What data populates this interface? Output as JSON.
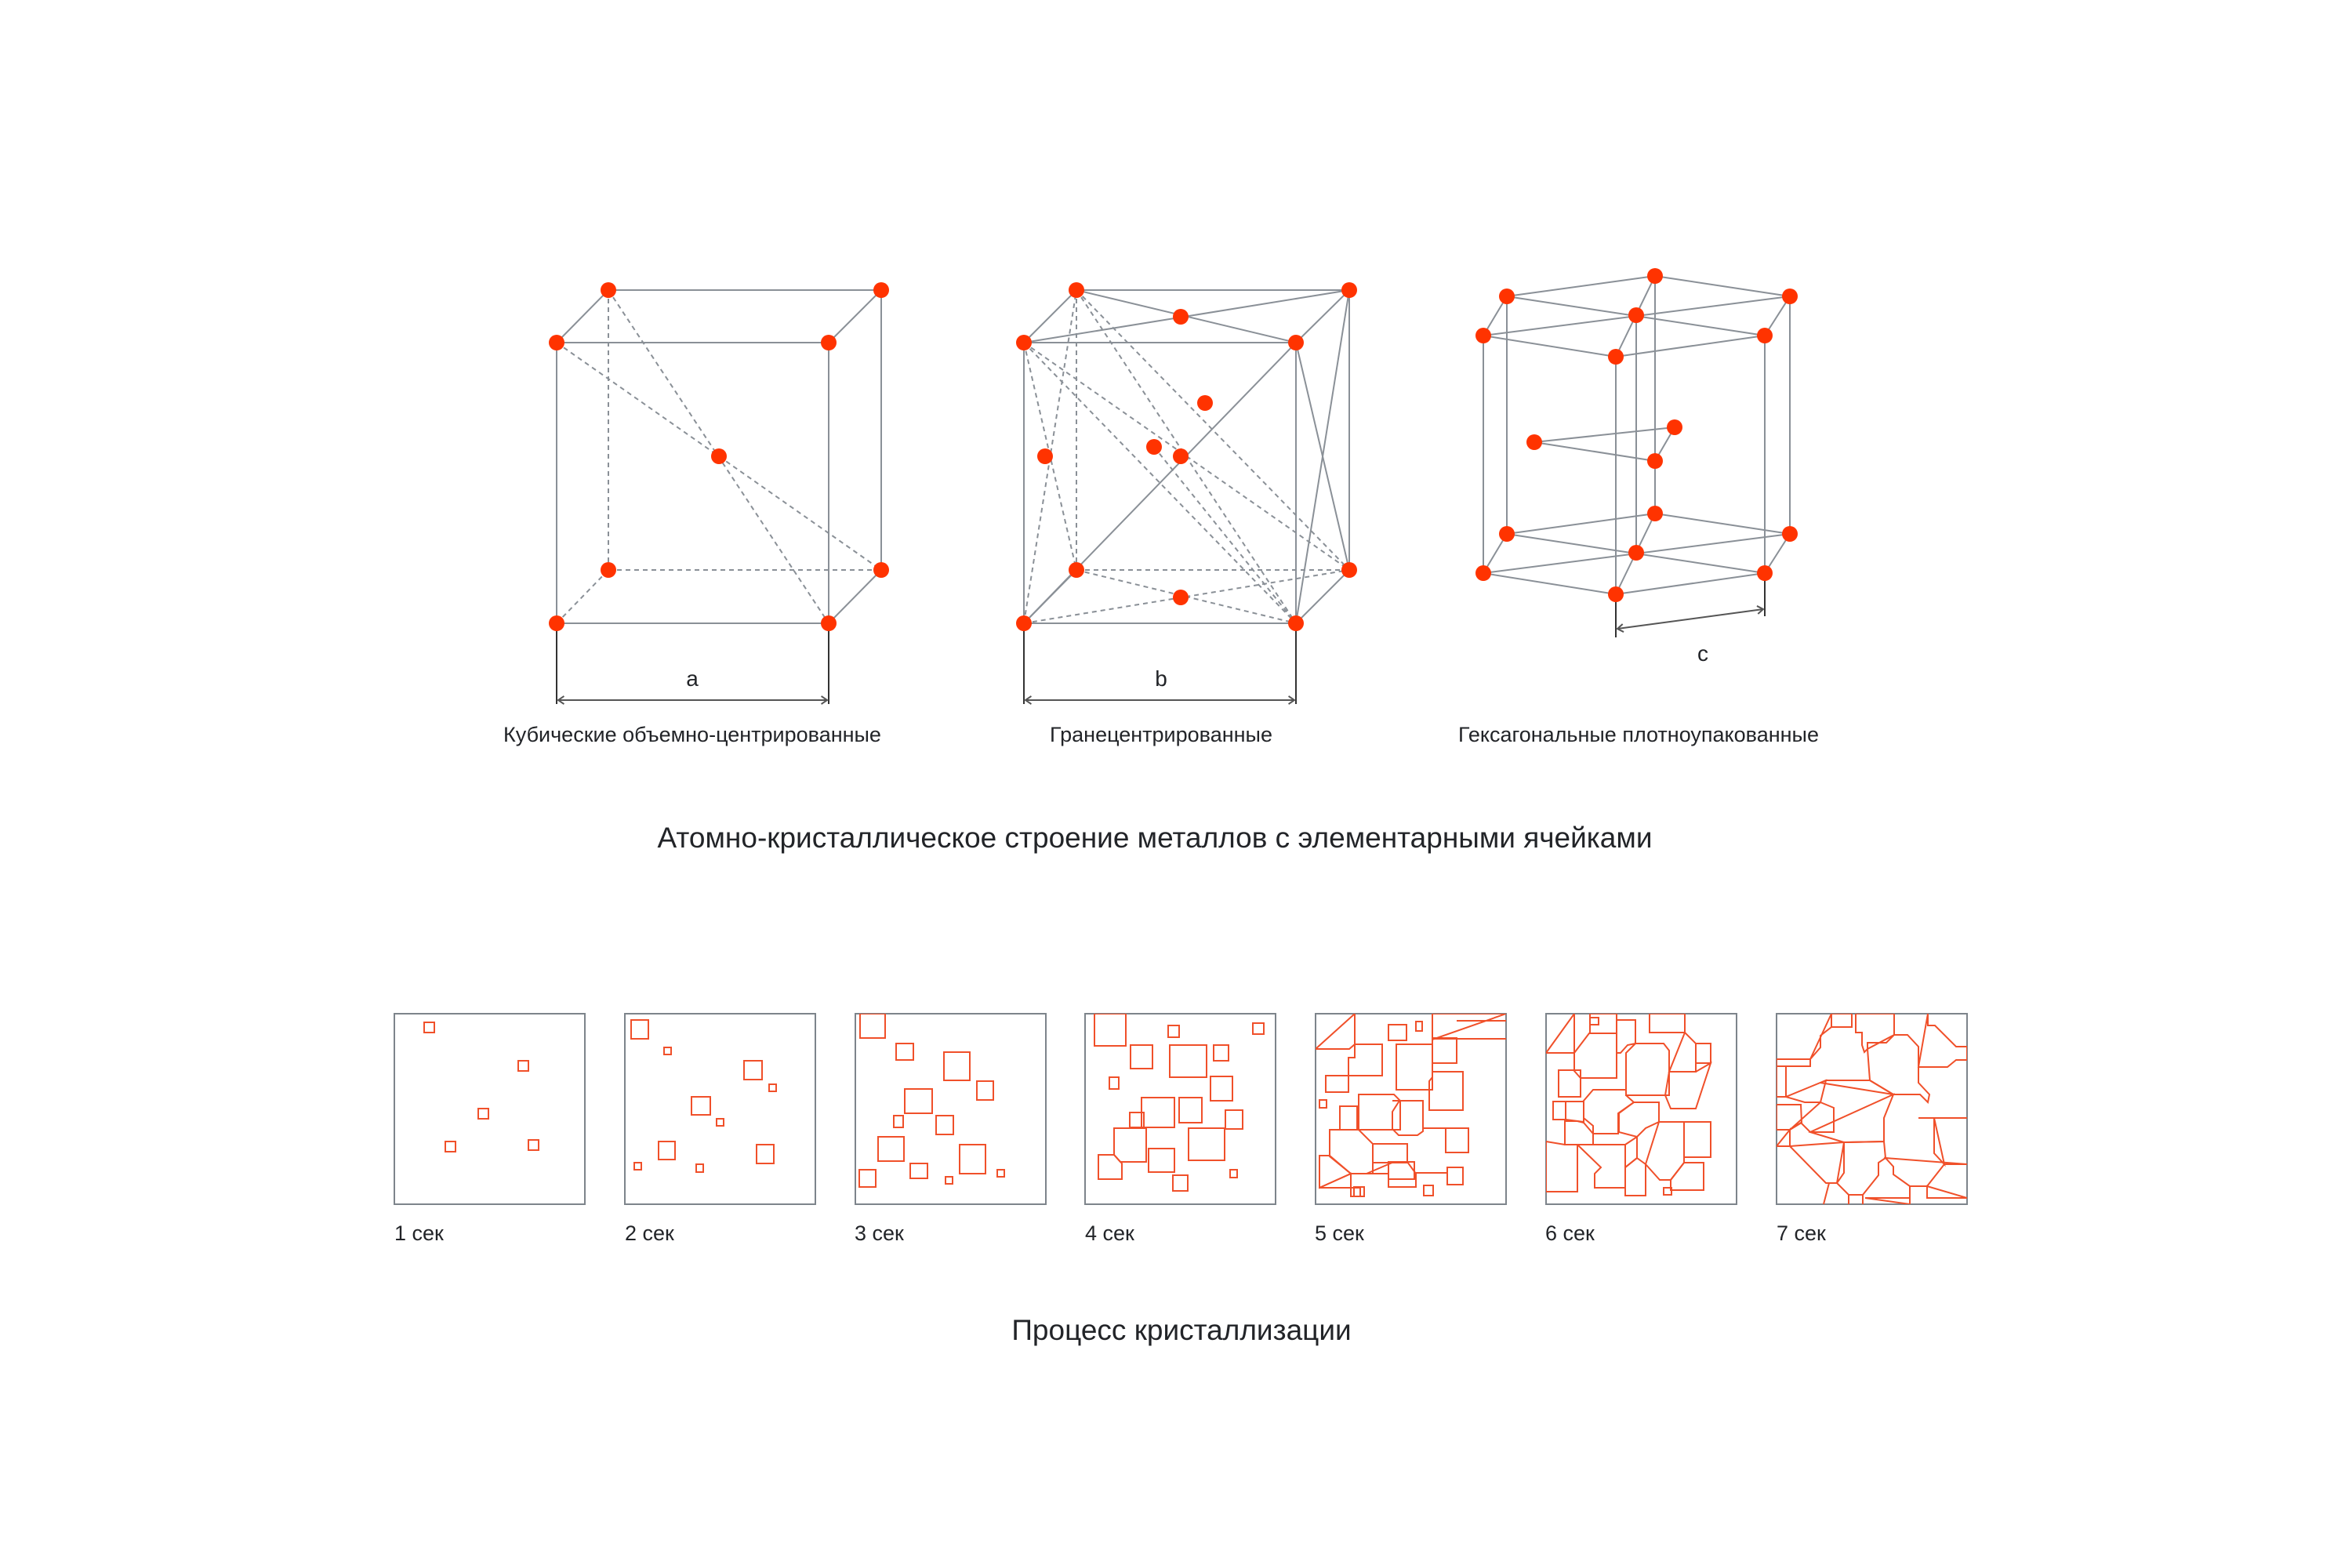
{
  "colors": {
    "atom": "#ff3300",
    "edge": "#8a9097",
    "grain": "#f0502a",
    "frame": "#7d848b",
    "text": "#222428"
  },
  "lattices": [
    {
      "id": "bcc",
      "caption": "Кубические объемно-центрированные",
      "dimension_label": "a"
    },
    {
      "id": "fcc",
      "caption": "Гранецентрированные",
      "dimension_label": "b"
    },
    {
      "id": "hcp",
      "caption": "Гексагональные плотноупакованные",
      "dimension_label": "c"
    }
  ],
  "section_titles": {
    "structure": "Атомно-кристаллическое строение металлов с элементарными ячейками",
    "crystallization": "Процесс кристаллизации"
  },
  "crystallization_stages": [
    {
      "label": "1 сек"
    },
    {
      "label": "2 сек"
    },
    {
      "label": "3 сек"
    },
    {
      "label": "4 сек"
    },
    {
      "label": "5 сек"
    },
    {
      "label": "6 сек"
    },
    {
      "label": "7 сек"
    }
  ]
}
